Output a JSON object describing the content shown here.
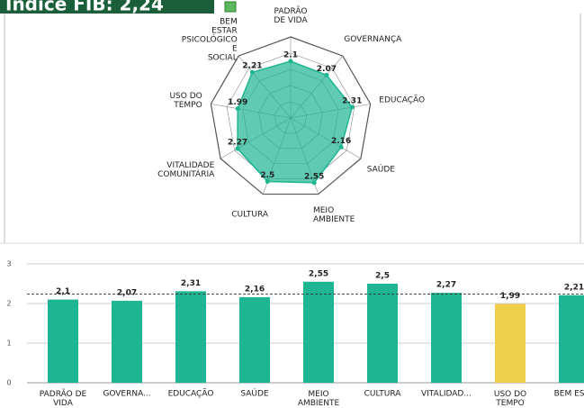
{
  "header": {
    "title": "Índice FIB: 2,24"
  },
  "chart_data": [
    {
      "type": "radar",
      "categories": [
        "PADRÃO\nDE VIDA",
        "GOVERNANÇA",
        "EDUCAÇÃO",
        "SAÚDE",
        "MEIO\nAMBIENTE",
        "CULTURA",
        "VITALIDADE\nCOMUNITÁRIA",
        "USO DO\nTEMPO",
        "BEM\nESTAR\nPSICOLÓGICO\nE\nSOCIAL"
      ],
      "values": [
        2.1,
        2.07,
        2.31,
        2.16,
        2.55,
        2.5,
        2.27,
        1.99,
        2.21
      ],
      "rlim": [
        0,
        3
      ],
      "color": "#1db592"
    },
    {
      "type": "bar",
      "categories": [
        "PADRÃO DE VIDA",
        "GOVERNA...",
        "EDUCAÇÃO",
        "SAÚDE",
        "MEIO AMBIENTE",
        "CULTURA",
        "VITALIDAD...",
        "USO DO TEMPO",
        "BEM ESTA"
      ],
      "values": [
        2.1,
        2.07,
        2.31,
        2.16,
        2.55,
        2.5,
        2.27,
        1.99,
        2.21
      ],
      "value_labels": [
        "2,1",
        "2,07",
        "2,31",
        "2,16",
        "2,55",
        "2,5",
        "2,27",
        "1,99",
        "2,21"
      ],
      "colors": [
        "#1db592",
        "#1db592",
        "#1db592",
        "#1db592",
        "#1db592",
        "#1db592",
        "#1db592",
        "#f0d04a",
        "#1db592"
      ],
      "ylim": [
        0,
        3
      ],
      "yticks": [
        0,
        1,
        2,
        3
      ],
      "grid": true,
      "reference_line": 2.24
    }
  ]
}
